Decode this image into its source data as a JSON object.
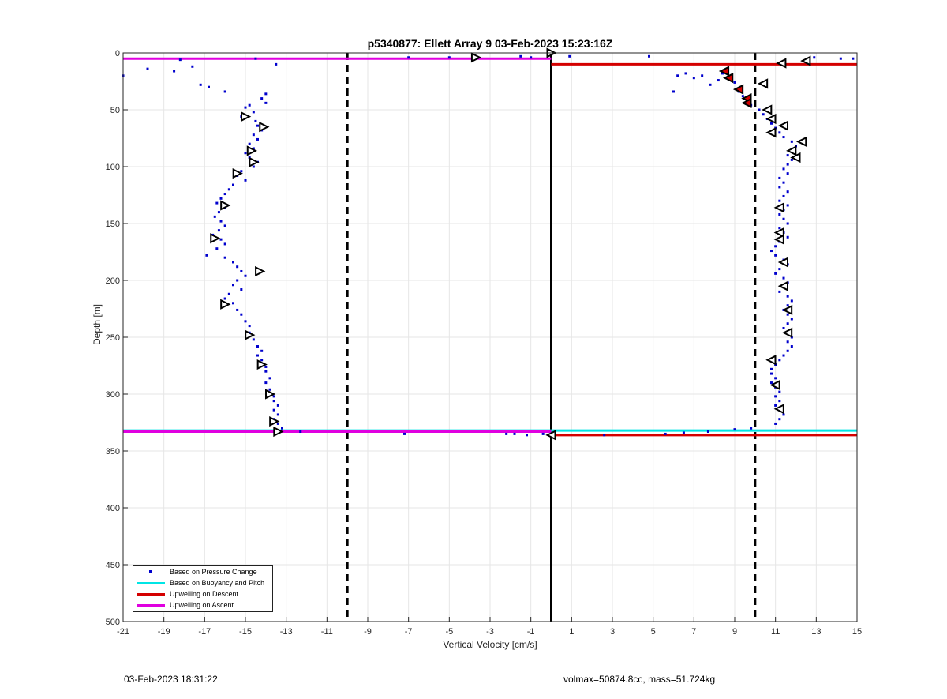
{
  "chart_data": {
    "type": "scatter",
    "title": "p5340877: Ellett Array 9 03-Feb-2023 15:23:16Z",
    "xlabel": "Vertical Velocity [cm/s]",
    "ylabel": "Depth [m]",
    "xlim": [
      -21,
      15
    ],
    "ylim": [
      0,
      500
    ],
    "y_reversed": true,
    "grid": true,
    "xticks": [
      -21,
      -19,
      -17,
      -15,
      -13,
      -11,
      -9,
      -7,
      -5,
      -3,
      -1,
      1,
      3,
      5,
      7,
      9,
      11,
      13,
      15
    ],
    "yticks": [
      0,
      50,
      100,
      150,
      200,
      250,
      300,
      350,
      400,
      450,
      500
    ],
    "legend_position": "bottom-left",
    "legend": [
      {
        "label": "Based on Pressure Change",
        "color": "#0000cd",
        "style": "dot"
      },
      {
        "label": "Based on Buoyancy and Pitch",
        "color": "#00e5e5",
        "style": "line"
      },
      {
        "label": "Upwelling on Descent",
        "color": "#d40000",
        "style": "line"
      },
      {
        "label": "Upwelling on Ascent",
        "color": "#e000e0",
        "style": "line"
      }
    ],
    "reference_lines": {
      "dashed_x": [
        -10,
        10
      ],
      "solid_x": [
        0
      ]
    },
    "horizontal_lines": [
      {
        "y": 5,
        "x_from": -21,
        "x_to": 0,
        "color": "#e000e0"
      },
      {
        "y": 332,
        "x_from": -21,
        "x_to": 0,
        "color": "#00e5e5"
      },
      {
        "y": 333,
        "x_from": -21,
        "x_to": 0,
        "color": "#e000e0"
      },
      {
        "y": 10,
        "x_from": 0,
        "x_to": 15,
        "color": "#d40000"
      },
      {
        "y": 332,
        "x_from": 0,
        "x_to": 15,
        "color": "#00e5e5"
      },
      {
        "y": 336,
        "x_from": 0,
        "x_to": 15,
        "color": "#d40000"
      }
    ],
    "series": [
      {
        "name": "Based on Pressure Change",
        "color": "#0000cd",
        "points_ascent_left": [
          [
            -21,
            20
          ],
          [
            -19.8,
            14
          ],
          [
            -18.2,
            6
          ],
          [
            -18.5,
            16
          ],
          [
            -17.6,
            12
          ],
          [
            -17.2,
            28
          ],
          [
            -16.8,
            30
          ],
          [
            -16,
            34
          ],
          [
            -14.5,
            5
          ],
          [
            -13.5,
            10
          ],
          [
            -14,
            36
          ],
          [
            -14.2,
            40
          ],
          [
            -14,
            44
          ],
          [
            -14.8,
            46
          ],
          [
            -15,
            48
          ],
          [
            -14.6,
            52
          ],
          [
            -15.2,
            56
          ],
          [
            -14.5,
            60
          ],
          [
            -14.4,
            64
          ],
          [
            -14.2,
            68
          ],
          [
            -14.6,
            72
          ],
          [
            -14.4,
            76
          ],
          [
            -14.8,
            80
          ],
          [
            -14.6,
            84
          ],
          [
            -15,
            88
          ],
          [
            -14.8,
            92
          ],
          [
            -14.4,
            96
          ],
          [
            -14.6,
            100
          ],
          [
            -15.2,
            104
          ],
          [
            -15.4,
            108
          ],
          [
            -15,
            112
          ],
          [
            -15.6,
            116
          ],
          [
            -15.8,
            120
          ],
          [
            -16,
            124
          ],
          [
            -16.2,
            128
          ],
          [
            -16.4,
            132
          ],
          [
            -16,
            136
          ],
          [
            -16.3,
            140
          ],
          [
            -16.5,
            144
          ],
          [
            -16.2,
            148
          ],
          [
            -16,
            152
          ],
          [
            -16.3,
            156
          ],
          [
            -16.6,
            160
          ],
          [
            -16.2,
            164
          ],
          [
            -16,
            168
          ],
          [
            -16.4,
            172
          ],
          [
            -16.9,
            178
          ],
          [
            -16,
            180
          ],
          [
            -15.6,
            184
          ],
          [
            -15.4,
            188
          ],
          [
            -15.2,
            192
          ],
          [
            -15,
            196
          ],
          [
            -15.4,
            200
          ],
          [
            -15.6,
            204
          ],
          [
            -15.2,
            208
          ],
          [
            -15.8,
            212
          ],
          [
            -16,
            216
          ],
          [
            -15.6,
            220
          ],
          [
            -15.4,
            226
          ],
          [
            -15.2,
            230
          ],
          [
            -15,
            236
          ],
          [
            -14.8,
            240
          ],
          [
            -14.8,
            246
          ],
          [
            -14.6,
            252
          ],
          [
            -14.4,
            258
          ],
          [
            -14.2,
            262
          ],
          [
            -14.4,
            266
          ],
          [
            -14.2,
            270
          ],
          [
            -14,
            276
          ],
          [
            -14,
            280
          ],
          [
            -13.8,
            286
          ],
          [
            -14,
            290
          ],
          [
            -13.8,
            296
          ],
          [
            -13.6,
            302
          ],
          [
            -13.6,
            306
          ],
          [
            -13.4,
            310
          ],
          [
            -13.6,
            314
          ],
          [
            -13.4,
            318
          ],
          [
            -13.6,
            322
          ],
          [
            -13.4,
            326
          ],
          [
            -13.2,
            330
          ],
          [
            -12.3,
            333
          ],
          [
            -13.4,
            334
          ],
          [
            -7.2,
            335
          ],
          [
            -2.2,
            335
          ],
          [
            -1.8,
            335
          ],
          [
            -1.2,
            336
          ],
          [
            -0.4,
            335
          ],
          [
            -7,
            4
          ],
          [
            -5,
            4
          ],
          [
            -1.5,
            3
          ],
          [
            -1,
            4
          ]
        ],
        "points_descent_right": [
          [
            4.8,
            3
          ],
          [
            12.9,
            4
          ],
          [
            14.2,
            5
          ],
          [
            14.8,
            5
          ],
          [
            0.9,
            3
          ],
          [
            6,
            34
          ],
          [
            6.2,
            20
          ],
          [
            6.6,
            18
          ],
          [
            7,
            22
          ],
          [
            7.4,
            20
          ],
          [
            7.8,
            28
          ],
          [
            8.2,
            24
          ],
          [
            8.4,
            18
          ],
          [
            8.6,
            22
          ],
          [
            9,
            26
          ],
          [
            9.2,
            34
          ],
          [
            9.4,
            38
          ],
          [
            9.6,
            42
          ],
          [
            9.8,
            46
          ],
          [
            10.2,
            50
          ],
          [
            10.4,
            54
          ],
          [
            10.6,
            58
          ],
          [
            10.8,
            62
          ],
          [
            11,
            66
          ],
          [
            11.2,
            70
          ],
          [
            11.4,
            74
          ],
          [
            11.8,
            78
          ],
          [
            12,
            82
          ],
          [
            11.8,
            86
          ],
          [
            11.6,
            90
          ],
          [
            11.8,
            94
          ],
          [
            11.6,
            98
          ],
          [
            11.4,
            102
          ],
          [
            11.6,
            106
          ],
          [
            11.2,
            110
          ],
          [
            11.4,
            114
          ],
          [
            11.2,
            118
          ],
          [
            11.6,
            122
          ],
          [
            11.4,
            126
          ],
          [
            11.2,
            130
          ],
          [
            11.6,
            134
          ],
          [
            11.4,
            138
          ],
          [
            11.2,
            142
          ],
          [
            11.4,
            146
          ],
          [
            11.6,
            150
          ],
          [
            11.2,
            154
          ],
          [
            11.4,
            158
          ],
          [
            11.6,
            162
          ],
          [
            11.2,
            166
          ],
          [
            11,
            170
          ],
          [
            10.8,
            174
          ],
          [
            11,
            178
          ],
          [
            11.4,
            182
          ],
          [
            11.6,
            186
          ],
          [
            11.2,
            190
          ],
          [
            11,
            194
          ],
          [
            11.4,
            198
          ],
          [
            11.6,
            202
          ],
          [
            11.4,
            206
          ],
          [
            11.2,
            210
          ],
          [
            11.6,
            214
          ],
          [
            11.8,
            218
          ],
          [
            11.6,
            222
          ],
          [
            11.4,
            226
          ],
          [
            11.6,
            230
          ],
          [
            11.8,
            234
          ],
          [
            11.6,
            238
          ],
          [
            11.4,
            242
          ],
          [
            11.6,
            246
          ],
          [
            11.8,
            250
          ],
          [
            11.6,
            254
          ],
          [
            11.8,
            258
          ],
          [
            11.6,
            262
          ],
          [
            11.4,
            266
          ],
          [
            11.2,
            270
          ],
          [
            11,
            274
          ],
          [
            10.8,
            278
          ],
          [
            10.8,
            282
          ],
          [
            11,
            286
          ],
          [
            10.8,
            290
          ],
          [
            11,
            294
          ],
          [
            11.2,
            298
          ],
          [
            11,
            302
          ],
          [
            11.2,
            306
          ],
          [
            11,
            310
          ],
          [
            11.2,
            314
          ],
          [
            11.4,
            318
          ],
          [
            11.2,
            322
          ],
          [
            11,
            326
          ],
          [
            9.8,
            330
          ],
          [
            9,
            331
          ],
          [
            7.7,
            333
          ],
          [
            6.5,
            334
          ],
          [
            5.6,
            335
          ],
          [
            2.6,
            336
          ]
        ]
      }
    ],
    "markers_ascent": [
      [
        -3.7,
        4
      ],
      [
        -15,
        56
      ],
      [
        -14.1,
        65
      ],
      [
        -14.7,
        86
      ],
      [
        -14.6,
        96
      ],
      [
        -15.4,
        106
      ],
      [
        -16,
        134
      ],
      [
        -16.5,
        163
      ],
      [
        -14.3,
        192
      ],
      [
        -16,
        221
      ],
      [
        -14.8,
        248
      ],
      [
        -14.2,
        274
      ],
      [
        -13.8,
        300
      ],
      [
        -13.6,
        324
      ],
      [
        -13.4,
        333
      ],
      [
        0,
        0
      ]
    ],
    "markers_descent": [
      [
        12.5,
        7
      ],
      [
        11.3,
        9
      ],
      [
        10.4,
        27
      ],
      [
        10.6,
        50
      ],
      [
        10.8,
        58
      ],
      [
        11.4,
        64
      ],
      [
        10.8,
        70
      ],
      [
        12.3,
        78
      ],
      [
        11.8,
        86
      ],
      [
        12,
        92
      ],
      [
        11.2,
        136
      ],
      [
        11.2,
        158
      ],
      [
        11.2,
        164
      ],
      [
        11.4,
        184
      ],
      [
        11.4,
        205
      ],
      [
        11.6,
        226
      ],
      [
        11.6,
        246
      ],
      [
        10.8,
        270
      ],
      [
        11,
        292
      ],
      [
        11.2,
        313
      ],
      [
        0,
        336
      ]
    ],
    "markers_descent_red": [
      [
        8.5,
        16
      ],
      [
        8.7,
        22
      ],
      [
        9.2,
        32
      ],
      [
        9.6,
        40
      ],
      [
        9.6,
        44
      ]
    ]
  },
  "footer": {
    "left": "03-Feb-2023 18:31:22",
    "right": "volmax=50874.8cc, mass=51.724kg"
  }
}
